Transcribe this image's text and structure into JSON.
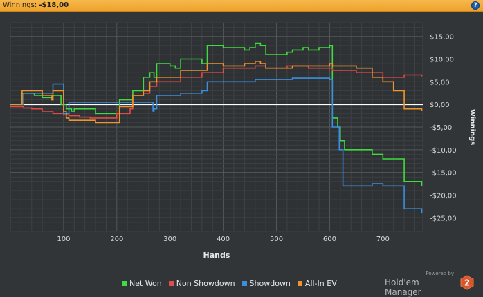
{
  "header": {
    "label": "Winnings:",
    "value": "-$18,00",
    "help_icon": "?"
  },
  "colors": {
    "background": "#323537",
    "grid": "#4a4d50",
    "zero_line": "#ffffff",
    "net_won": "#3fdc3f",
    "non_showdown": "#e34a4a",
    "showdown": "#3a8fe0",
    "all_in_ev": "#f0952c",
    "title_bar": "#f3ac39"
  },
  "chart_data": {
    "type": "line",
    "xlabel": "Hands",
    "ylabel": "Winnings",
    "xlim": [
      0,
      775
    ],
    "ylim": [
      -28,
      18
    ],
    "x_ticks": [
      100,
      200,
      300,
      400,
      500,
      600,
      700
    ],
    "y_ticks": [
      15,
      10,
      5,
      0,
      -5,
      -10,
      -15,
      -20,
      -25
    ],
    "y_tick_labels": [
      "$15,00",
      "$10,00",
      "$5,00",
      "$0,00",
      "-$5,00",
      "-$10,00",
      "-$15,00",
      "-$20,00",
      "-$25,00"
    ],
    "grid": true,
    "series": [
      {
        "name": "Net Won",
        "color": "#3fdc3f",
        "points": [
          [
            0,
            0
          ],
          [
            20,
            0
          ],
          [
            22,
            2.5
          ],
          [
            45,
            2
          ],
          [
            60,
            1.5
          ],
          [
            78,
            1
          ],
          [
            80,
            2
          ],
          [
            90,
            2
          ],
          [
            95,
            0
          ],
          [
            105,
            -1
          ],
          [
            115,
            -1.5
          ],
          [
            120,
            -1
          ],
          [
            160,
            -2
          ],
          [
            180,
            -2
          ],
          [
            200,
            -2
          ],
          [
            205,
            1
          ],
          [
            225,
            1
          ],
          [
            230,
            3
          ],
          [
            245,
            3
          ],
          [
            250,
            6
          ],
          [
            262,
            7
          ],
          [
            265,
            7
          ],
          [
            270,
            6
          ],
          [
            275,
            9
          ],
          [
            300,
            8.5
          ],
          [
            310,
            8
          ],
          [
            320,
            10
          ],
          [
            360,
            9
          ],
          [
            370,
            13
          ],
          [
            400,
            12.5
          ],
          [
            440,
            12
          ],
          [
            450,
            12.5
          ],
          [
            460,
            13.5
          ],
          [
            470,
            13
          ],
          [
            480,
            11
          ],
          [
            520,
            11.5
          ],
          [
            530,
            12
          ],
          [
            550,
            12.5
          ],
          [
            560,
            12
          ],
          [
            580,
            12.5
          ],
          [
            600,
            13
          ],
          [
            605,
            -3
          ],
          [
            615,
            -5
          ],
          [
            620,
            -8
          ],
          [
            628,
            -10
          ],
          [
            660,
            -10
          ],
          [
            680,
            -11
          ],
          [
            700,
            -12
          ],
          [
            715,
            -12
          ],
          [
            735,
            -12
          ],
          [
            740,
            -17
          ],
          [
            765,
            -17
          ],
          [
            773,
            -18
          ]
        ]
      },
      {
        "name": "Non Showdown",
        "color": "#e34a4a",
        "points": [
          [
            0,
            -0.5
          ],
          [
            25,
            -0.8
          ],
          [
            40,
            -1
          ],
          [
            60,
            -1.5
          ],
          [
            80,
            -2
          ],
          [
            100,
            -2.3
          ],
          [
            110,
            -2.5
          ],
          [
            130,
            -2.8
          ],
          [
            150,
            -3
          ],
          [
            160,
            -3
          ],
          [
            200,
            -2
          ],
          [
            225,
            -1
          ],
          [
            230,
            2
          ],
          [
            250,
            2.5
          ],
          [
            262,
            4
          ],
          [
            270,
            4
          ],
          [
            275,
            5
          ],
          [
            300,
            5
          ],
          [
            320,
            6
          ],
          [
            360,
            7
          ],
          [
            400,
            8
          ],
          [
            440,
            8
          ],
          [
            460,
            8.5
          ],
          [
            480,
            8
          ],
          [
            520,
            8.5
          ],
          [
            560,
            8
          ],
          [
            600,
            8
          ],
          [
            605,
            7.5
          ],
          [
            620,
            7.5
          ],
          [
            650,
            7
          ],
          [
            680,
            7
          ],
          [
            700,
            6
          ],
          [
            720,
            6
          ],
          [
            740,
            6.5
          ],
          [
            773,
            6.2
          ]
        ]
      },
      {
        "name": "Showdown",
        "color": "#3a8fe0",
        "points": [
          [
            0,
            0
          ],
          [
            20,
            0
          ],
          [
            25,
            2.5
          ],
          [
            60,
            2.5
          ],
          [
            80,
            4.5
          ],
          [
            95,
            4.5
          ],
          [
            100,
            -2
          ],
          [
            105,
            -2
          ],
          [
            110,
            0.5
          ],
          [
            200,
            0.5
          ],
          [
            225,
            0.5
          ],
          [
            265,
            0.5
          ],
          [
            268,
            -1.5
          ],
          [
            270,
            -1
          ],
          [
            275,
            2
          ],
          [
            310,
            2
          ],
          [
            320,
            2.5
          ],
          [
            360,
            3
          ],
          [
            370,
            5
          ],
          [
            460,
            5.5
          ],
          [
            480,
            5.5
          ],
          [
            520,
            5.5
          ],
          [
            530,
            5.8
          ],
          [
            560,
            5.8
          ],
          [
            600,
            5.5
          ],
          [
            605,
            -5
          ],
          [
            618,
            -10
          ],
          [
            625,
            -18
          ],
          [
            660,
            -18
          ],
          [
            680,
            -17.5
          ],
          [
            700,
            -18
          ],
          [
            735,
            -18
          ],
          [
            740,
            -23
          ],
          [
            760,
            -23
          ],
          [
            773,
            -24
          ]
        ]
      },
      {
        "name": "All-In EV",
        "color": "#f0952c",
        "points": [
          [
            0,
            0
          ],
          [
            20,
            0
          ],
          [
            22,
            3
          ],
          [
            45,
            3
          ],
          [
            60,
            2
          ],
          [
            78,
            1
          ],
          [
            80,
            3
          ],
          [
            95,
            3
          ],
          [
            100,
            -1.5
          ],
          [
            105,
            -3
          ],
          [
            110,
            -3.5
          ],
          [
            160,
            -4
          ],
          [
            200,
            -4
          ],
          [
            205,
            -0.5
          ],
          [
            225,
            -0.5
          ],
          [
            230,
            2
          ],
          [
            250,
            3
          ],
          [
            262,
            5
          ],
          [
            275,
            6
          ],
          [
            300,
            6
          ],
          [
            320,
            7.5
          ],
          [
            360,
            7.5
          ],
          [
            370,
            9
          ],
          [
            400,
            8.5
          ],
          [
            440,
            9
          ],
          [
            460,
            9.5
          ],
          [
            470,
            9
          ],
          [
            480,
            8
          ],
          [
            520,
            8
          ],
          [
            530,
            8.5
          ],
          [
            560,
            8.5
          ],
          [
            600,
            9
          ],
          [
            605,
            8.5
          ],
          [
            620,
            8.5
          ],
          [
            650,
            8
          ],
          [
            680,
            6
          ],
          [
            700,
            5
          ],
          [
            720,
            3
          ],
          [
            735,
            3
          ],
          [
            740,
            -1
          ],
          [
            773,
            -1.5
          ]
        ]
      }
    ]
  },
  "legend": [
    {
      "label": "Net Won",
      "color": "#3fdc3f"
    },
    {
      "label": "Non Showdown",
      "color": "#e34a4a"
    },
    {
      "label": "Showdown",
      "color": "#3a8fe0"
    },
    {
      "label": "All-In EV",
      "color": "#f0952c"
    }
  ],
  "branding": {
    "powered": "Powered by",
    "name": "Hold'em Manager",
    "logo_number": "2"
  }
}
